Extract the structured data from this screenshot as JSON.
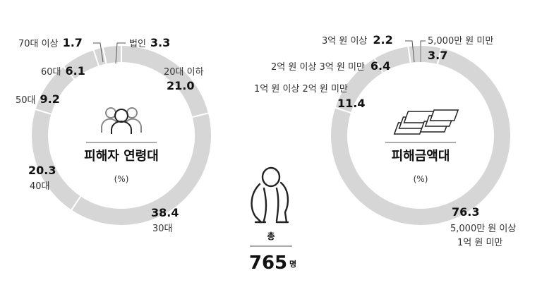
{
  "colors": {
    "slice": "#d6d6d6",
    "separator": "#ffffff",
    "leader": "#555555",
    "text": "#222222"
  },
  "chart_data": [
    {
      "type": "pie",
      "title": "피해자 연령대",
      "unit": "(%)",
      "icon": "people-group-icon",
      "slices": [
        {
          "label": "20대 이하",
          "value": 21.0
        },
        {
          "label": "30대",
          "value": 38.4
        },
        {
          "label": "40대",
          "value": 20.3
        },
        {
          "label": "50대",
          "value": 9.2
        },
        {
          "label": "60대",
          "value": 6.1
        },
        {
          "label": "70대 이상",
          "value": 1.7
        },
        {
          "label": "법인",
          "value": 3.3
        }
      ]
    },
    {
      "type": "pie",
      "title": "피해금액대",
      "unit": "(%)",
      "icon": "money-stack-icon",
      "slices": [
        {
          "label": "5,000만 원 미만",
          "value": 3.7
        },
        {
          "label": "5,000만 원 이상 1억 원 미만",
          "value": 76.3
        },
        {
          "label": "1억 원 이상 2억 원 미만",
          "value": 11.4
        },
        {
          "label": "2억 원 이상 3억 원 미만",
          "value": 6.4
        },
        {
          "label": "3억 원 이상",
          "value": 2.2
        }
      ]
    }
  ],
  "total": {
    "label": "총",
    "value": "765",
    "unit": "명",
    "icon": "sitting-person-icon"
  }
}
